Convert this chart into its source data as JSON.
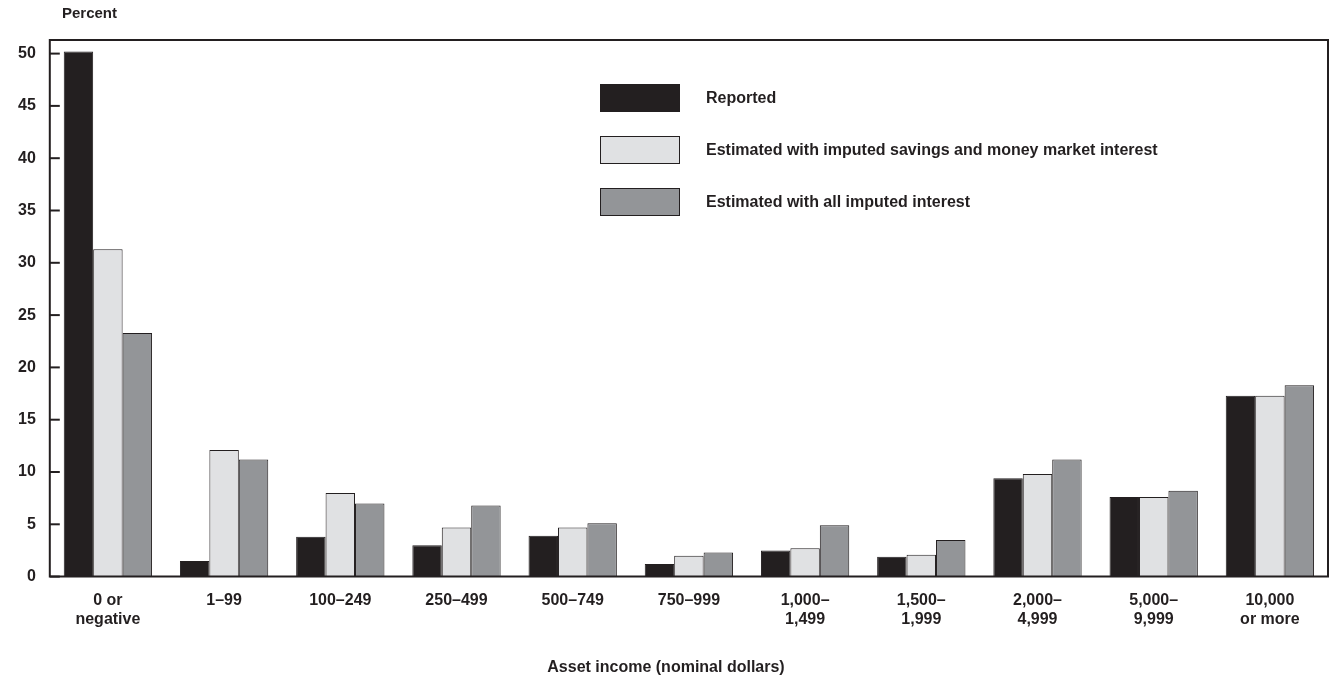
{
  "chart_data": {
    "type": "bar",
    "ylabel": "Percent",
    "xlabel": "Asset income (nominal dollars)",
    "categories": [
      "0 or negative",
      "1–99",
      "100–249",
      "250–499",
      "500–749",
      "750–999",
      "1,000–1,499",
      "1,500–1,999",
      "2,000–4,999",
      "5,000–9,999",
      "10,000 or more"
    ],
    "series": [
      {
        "name": "Reported",
        "color": "#231f20",
        "values": [
          50.2,
          1.5,
          3.8,
          3.0,
          3.9,
          1.2,
          2.5,
          1.9,
          9.4,
          7.6,
          17.3
        ]
      },
      {
        "name": "Estimated with imputed savings and money market interest",
        "color": "#e0e1e3",
        "values": [
          31.3,
          12.1,
          8.0,
          4.7,
          4.7,
          2.0,
          2.7,
          2.1,
          9.8,
          7.6,
          17.3
        ]
      },
      {
        "name": "Estimated with all imputed interest",
        "color": "#939598",
        "values": [
          23.3,
          11.2,
          7.0,
          6.8,
          5.1,
          2.3,
          4.9,
          3.5,
          11.2,
          8.2,
          18.3
        ]
      }
    ],
    "ylim": [
      0,
      51.3
    ],
    "yticks": [
      0,
      5,
      10,
      15,
      20,
      25,
      30,
      35,
      40,
      45,
      50
    ],
    "grid": false,
    "legend": "top right"
  }
}
